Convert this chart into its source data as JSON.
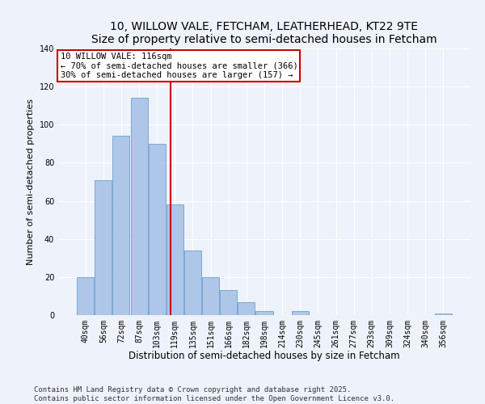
{
  "title": "10, WILLOW VALE, FETCHAM, LEATHERHEAD, KT22 9TE",
  "subtitle": "Size of property relative to semi-detached houses in Fetcham",
  "xlabel": "Distribution of semi-detached houses by size in Fetcham",
  "ylabel": "Number of semi-detached properties",
  "categories": [
    "40sqm",
    "56sqm",
    "72sqm",
    "87sqm",
    "103sqm",
    "119sqm",
    "135sqm",
    "151sqm",
    "166sqm",
    "182sqm",
    "198sqm",
    "214sqm",
    "230sqm",
    "245sqm",
    "261sqm",
    "277sqm",
    "293sqm",
    "309sqm",
    "324sqm",
    "340sqm",
    "356sqm"
  ],
  "values": [
    20,
    71,
    94,
    114,
    90,
    58,
    34,
    20,
    13,
    7,
    2,
    0,
    2,
    0,
    0,
    0,
    0,
    0,
    0,
    0,
    1
  ],
  "bar_color": "#aec6e8",
  "bar_edgecolor": "#5a96c8",
  "property_line_x": 4.77,
  "annotation_title": "10 WILLOW VALE: 116sqm",
  "annotation_line1": "← 70% of semi-detached houses are smaller (366)",
  "annotation_line2": "30% of semi-detached houses are larger (157) →",
  "annotation_box_color": "#ffffff",
  "annotation_box_edgecolor": "#cc0000",
  "vline_color": "#cc0000",
  "ylim": [
    0,
    140
  ],
  "yticks": [
    0,
    20,
    40,
    60,
    80,
    100,
    120,
    140
  ],
  "background_color": "#eef2fa",
  "footer_line1": "Contains HM Land Registry data © Crown copyright and database right 2025.",
  "footer_line2": "Contains public sector information licensed under the Open Government Licence v3.0.",
  "title_fontsize": 10,
  "subtitle_fontsize": 9,
  "xlabel_fontsize": 8.5,
  "ylabel_fontsize": 8,
  "tick_fontsize": 7,
  "footer_fontsize": 6.5,
  "annotation_fontsize": 7.5
}
